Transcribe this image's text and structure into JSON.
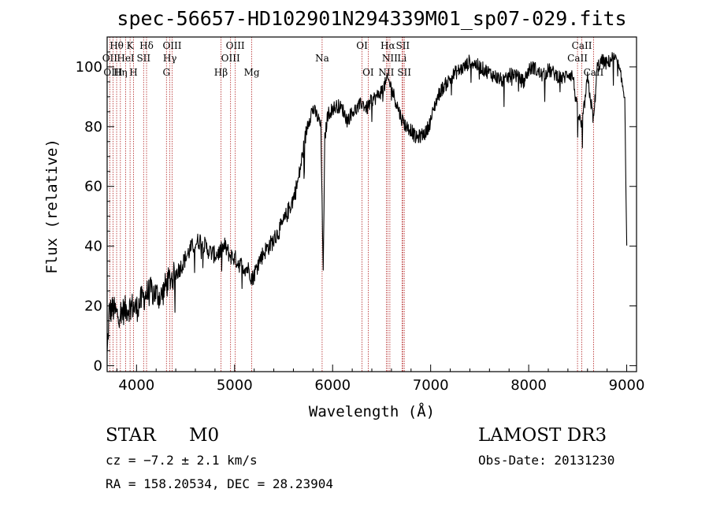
{
  "chart_data": {
    "type": "line",
    "title": "spec-56657-HD102901N294339M01_sp07-029.fits",
    "xlabel": "Wavelength (Å)",
    "ylabel": "Flux (relative)",
    "xlim": [
      3700,
      9100
    ],
    "ylim": [
      -2,
      110
    ],
    "xticks": [
      4000,
      5000,
      6000,
      7000,
      8000,
      9000
    ],
    "yticks": [
      0,
      20,
      40,
      60,
      80,
      100
    ],
    "spectrum_anchors": {
      "x": [
        3700,
        3720,
        3760,
        3800,
        3850,
        3900,
        3950,
        4000,
        4050,
        4100,
        4150,
        4200,
        4250,
        4300,
        4340,
        4380,
        4450,
        4500,
        4550,
        4600,
        4650,
        4700,
        4750,
        4800,
        4850,
        4900,
        4950,
        5000,
        5050,
        5100,
        5150,
        5180,
        5250,
        5300,
        5350,
        5400,
        5450,
        5500,
        5550,
        5600,
        5650,
        5700,
        5750,
        5800,
        5850,
        5880,
        5895,
        5905,
        5920,
        5950,
        6000,
        6050,
        6100,
        6150,
        6200,
        6250,
        6300,
        6350,
        6400,
        6450,
        6500,
        6550,
        6563,
        6600,
        6650,
        6700,
        6750,
        6800,
        6850,
        6900,
        6950,
        7000,
        7050,
        7100,
        7150,
        7200,
        7250,
        7300,
        7350,
        7400,
        7450,
        7500,
        7550,
        7600,
        7650,
        7700,
        7750,
        7800,
        7850,
        7900,
        7950,
        8000,
        8050,
        8100,
        8150,
        8200,
        8250,
        8300,
        8350,
        8400,
        8450,
        8498,
        8542,
        8600,
        8662,
        8700,
        8750,
        8800,
        8850,
        8900,
        8950,
        8980,
        9000
      ],
      "y": [
        3,
        18,
        19,
        17,
        18,
        19,
        20,
        19,
        22,
        24,
        25,
        24,
        23,
        27,
        29,
        30,
        33,
        36,
        39,
        41,
        42,
        40,
        38,
        37,
        38,
        40,
        37,
        36,
        34,
        33,
        32,
        29,
        35,
        38,
        40,
        42,
        45,
        48,
        52,
        56,
        62,
        72,
        82,
        86,
        83,
        80,
        48,
        32,
        76,
        84,
        86,
        87,
        86,
        82,
        85,
        86,
        88,
        86,
        89,
        90,
        92,
        95,
        96,
        93,
        88,
        83,
        80,
        79,
        76,
        77,
        78,
        82,
        88,
        92,
        94,
        96,
        98,
        99,
        100,
        102,
        101,
        100,
        99,
        98,
        97,
        96,
        95,
        97,
        98,
        96,
        95,
        99,
        100,
        98,
        97,
        99,
        98,
        97,
        96,
        98,
        97,
        85,
        80,
        96,
        82,
        100,
        102,
        101,
        103,
        102,
        95,
        90,
        40
      ],
      "noise_amplitude": 3
    },
    "line_markers": [
      {
        "label": "Hθ",
        "wavelength": 3797,
        "row": 1
      },
      {
        "label": "OII",
        "wavelength": 3727,
        "row": 2
      },
      {
        "label": "OIII",
        "wavelength": 3760,
        "row": 3
      },
      {
        "label": "K",
        "wavelength": 3934,
        "row": 1
      },
      {
        "label": "HeI",
        "wavelength": 3889,
        "row": 2
      },
      {
        "label": "Hη",
        "wavelength": 3835,
        "row": 3
      },
      {
        "label": "SII",
        "wavelength": 4072,
        "row": 2
      },
      {
        "label": "H",
        "wavelength": 3969,
        "row": 3
      },
      {
        "label": "Hδ",
        "wavelength": 4102,
        "row": 1
      },
      {
        "label": "OIII",
        "wavelength": 4363,
        "row": 1
      },
      {
        "label": "Hγ",
        "wavelength": 4340,
        "row": 2
      },
      {
        "label": "G",
        "wavelength": 4305,
        "row": 3
      },
      {
        "label": "Hβ",
        "wavelength": 4861,
        "row": 3
      },
      {
        "label": "OIII",
        "wavelength": 5007,
        "row": 1
      },
      {
        "label": "OIII",
        "wavelength": 4959,
        "row": 2
      },
      {
        "label": "Mg",
        "wavelength": 5175,
        "row": 3
      },
      {
        "label": "Na",
        "wavelength": 5893,
        "row": 2
      },
      {
        "label": "OI",
        "wavelength": 6300,
        "row": 1
      },
      {
        "label": "OI",
        "wavelength": 6363,
        "row": 3
      },
      {
        "label": "Hα",
        "wavelength": 6563,
        "row": 1
      },
      {
        "label": "SII",
        "wavelength": 6716,
        "row": 1
      },
      {
        "label": "NII",
        "wavelength": 6584,
        "row": 2
      },
      {
        "label": "Li",
        "wavelength": 6708,
        "row": 2
      },
      {
        "label": "NII",
        "wavelength": 6548,
        "row": 3
      },
      {
        "label": "SII",
        "wavelength": 6731,
        "row": 3
      },
      {
        "label": "CaII",
        "wavelength": 8542,
        "row": 1
      },
      {
        "label": "CaII",
        "wavelength": 8498,
        "row": 2
      },
      {
        "label": "CaII",
        "wavelength": 8662,
        "row": 3
      }
    ],
    "colors": {
      "spectrum": "#000000",
      "marker": "#b22222",
      "axes": "#000000"
    }
  },
  "info": {
    "object_type": "STAR",
    "subclass": "M0",
    "survey": "LAMOST DR3",
    "cz": "cz = −7.2 ± 2.1 km/s",
    "obs_date": "Obs-Date: 20131230",
    "coords": "RA = 158.20534, DEC =  28.23904"
  }
}
